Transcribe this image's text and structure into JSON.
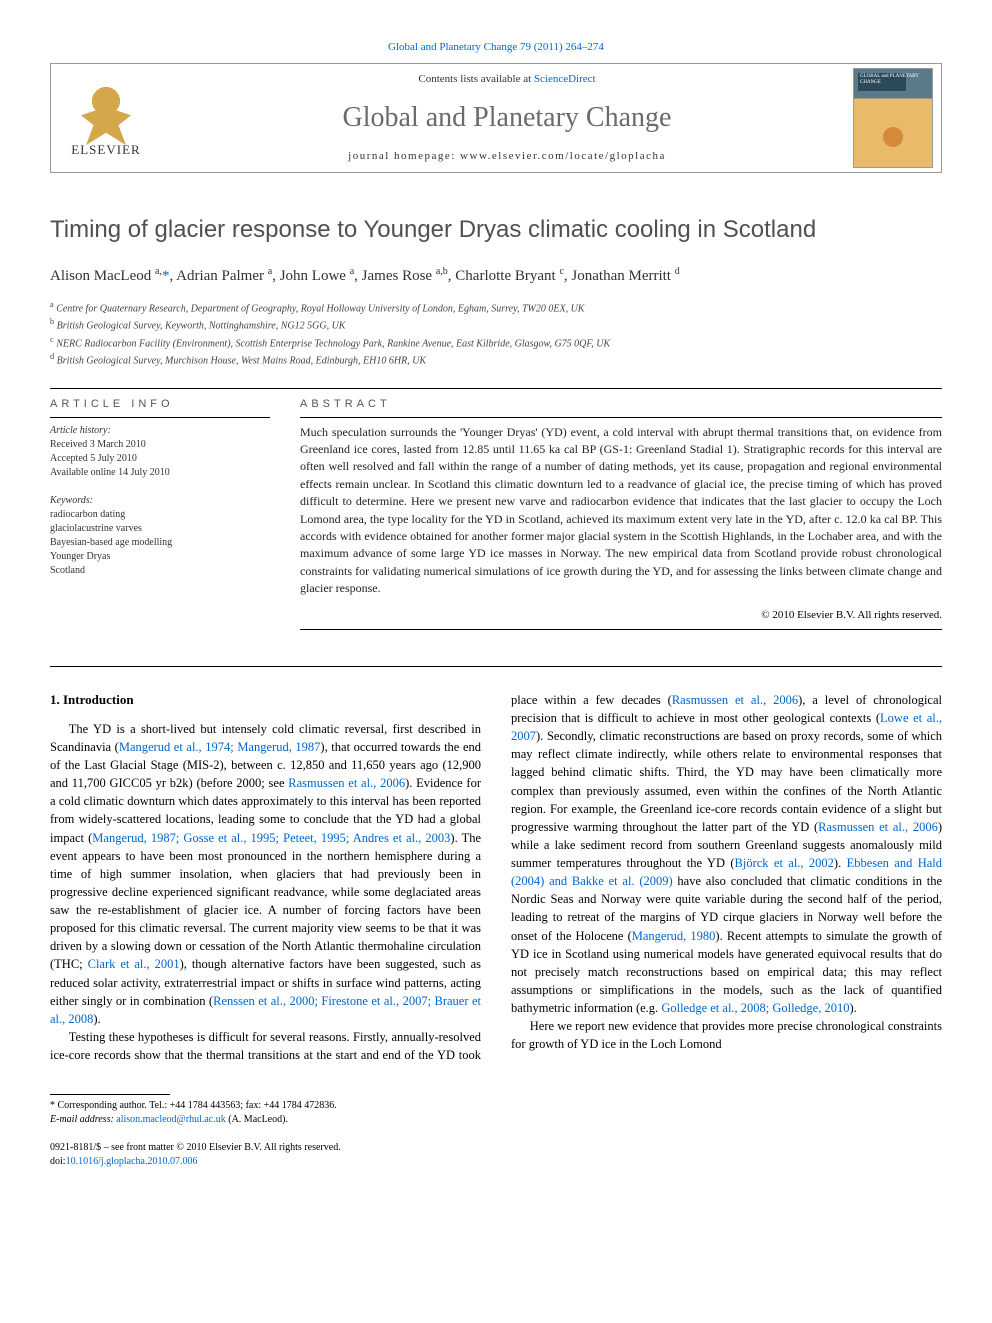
{
  "top_citation": "Global and Planetary Change 79 (2011) 264–274",
  "header": {
    "contents_prefix": "Contents lists available at ",
    "contents_link": "ScienceDirect",
    "journal_name": "Global and Planetary Change",
    "homepage_label": "journal homepage: www.elsevier.com/locate/gloplacha",
    "publisher_name": "ELSEVIER",
    "cover_title": "GLOBAL and PLANETARY CHANGE"
  },
  "article": {
    "title": "Timing of glacier response to Younger Dryas climatic cooling in Scotland",
    "authors_html": "Alison MacLeod <sup>a,</sup><a href=\"#\">*</a>, Adrian Palmer <sup>a</sup>, John Lowe <sup>a</sup>, James Rose <sup>a,b</sup>, Charlotte Bryant <sup>c</sup>, Jonathan Merritt <sup>d</sup>",
    "affiliations": [
      {
        "sup": "a",
        "text": "Centre for Quaternary Research, Department of Geography, Royal Holloway University of London, Egham, Surrey, TW20 0EX, UK"
      },
      {
        "sup": "b",
        "text": "British Geological Survey, Keyworth, Nottinghamshire, NG12 5GG, UK"
      },
      {
        "sup": "c",
        "text": "NERC Radiocarbon Facility (Environment), Scottish Enterprise Technology Park, Rankine Avenue, East Kilbride, Glasgow, G75 0QF, UK"
      },
      {
        "sup": "d",
        "text": "British Geological Survey, Murchison House, West Mains Road, Edinburgh, EH10 6HR, UK"
      }
    ]
  },
  "article_info": {
    "heading": "ARTICLE INFO",
    "history_label": "Article history:",
    "history": [
      "Received 3 March 2010",
      "Accepted 5 July 2010",
      "Available online 14 July 2010"
    ],
    "keywords_label": "Keywords:",
    "keywords": [
      "radiocarbon dating",
      "glaciolacustrine varves",
      "Bayesian-based age modelling",
      "Younger Dryas",
      "Scotland"
    ]
  },
  "abstract": {
    "heading": "ABSTRACT",
    "text": "Much speculation surrounds the 'Younger Dryas' (YD) event, a cold interval with abrupt thermal transitions that, on evidence from Greenland ice cores, lasted from 12.85 until 11.65 ka cal BP (GS-1: Greenland Stadial 1). Stratigraphic records for this interval are often well resolved and fall within the range of a number of dating methods, yet its cause, propagation and regional environmental effects remain unclear. In Scotland this climatic downturn led to a readvance of glacial ice, the precise timing of which has proved difficult to determine. Here we present new varve and radiocarbon evidence that indicates that the last glacier to occupy the Loch Lomond area, the type locality for the YD in Scotland, achieved its maximum extent very late in the YD, after c. 12.0 ka cal BP. This accords with evidence obtained for another former major glacial system in the Scottish Highlands, in the Lochaber area, and with the maximum advance of some large YD ice masses in Norway. The new empirical data from Scotland provide robust chronological constraints for validating numerical simulations of ice growth during the YD, and for assessing the links between climate change and glacier response.",
    "copyright": "© 2010 Elsevier B.V. All rights reserved."
  },
  "body": {
    "section_heading": "1. Introduction",
    "para1_pre": "The YD is a short-lived but intensely cold climatic reversal, first described in Scandinavia (",
    "cite1": "Mangerud et al., 1974; Mangerud, 1987",
    "para1_mid1": "), that occurred towards the end of the Last Glacial Stage (MIS-2), between c. 12,850 and 11,650 years ago (12,900 and 11,700 GICC05 yr b2k) (before 2000; see ",
    "cite2": "Rasmussen et al., 2006",
    "para1_mid2": "). Evidence for a cold climatic downturn which dates approximately to this interval has been reported from widely-scattered locations, leading some to conclude that the YD had a global impact (",
    "cite3": "Mangerud, 1987; Gosse et al., 1995; Peteet, 1995; Andres et al., 2003",
    "para1_mid3": "). The event appears to have been most pronounced in the northern hemisphere during a time of high summer insolation, when glaciers that had previously been in progressive decline experienced significant readvance, while some deglaciated areas saw the re-establishment of glacier ice. A number of forcing factors have been proposed for this climatic reversal. The current majority view seems to be that it was driven by a slowing down or cessation of the North Atlantic thermohaline circulation (THC; ",
    "cite4": "Clark et al., 2001",
    "para1_mid4": "), though alternative factors have been suggested, such as reduced solar activity, extraterrestrial impact or shifts in surface wind patterns, acting either singly or in combination (",
    "cite5": "Renssen et al., 2000; Firestone et al., 2007; Brauer et al., 2008",
    "para1_end": ").",
    "para2_pre": "Testing these hypotheses is difficult for several reasons. Firstly, annually-resolved ice-core records show that the thermal transitions at the start and end of the YD took place within a few decades (",
    "cite6": "Rasmussen et al., 2006",
    "para2_mid1": "), a level of chronological precision that is difficult to achieve in most other geological contexts (",
    "cite7": "Lowe et al., 2007",
    "para2_mid2": "). Secondly, climatic reconstructions are based on proxy records, some of which may reflect climate indirectly, while others relate to environmental responses that lagged behind climatic shifts. Third, the YD may have been climatically more complex than previously assumed, even within the confines of the North Atlantic region. For example, the Greenland ice-core records contain evidence of a slight but progressive warming throughout the latter part of the YD (",
    "cite8": "Rasmussen et al., 2006",
    "para2_mid3": ") while a lake sediment record from southern Greenland suggests anomalously mild summer temperatures throughout the YD (",
    "cite9": "Björck et al., 2002",
    "para2_mid4": "). ",
    "cite10": "Ebbesen and Hald (2004) and Bakke et al. (2009)",
    "para2_mid5": " have also concluded that climatic conditions in the Nordic Seas and Norway were quite variable during the second half of the period, leading to retreat of the margins of YD cirque glaciers in Norway well before the onset of the Holocene (",
    "cite11": "Mangerud, 1980",
    "para2_mid6": "). Recent attempts to simulate the growth of YD ice in Scotland using numerical models have generated equivocal results that do not precisely match reconstructions based on empirical data; this may reflect assumptions or simplifications in the models, such as the lack of quantified bathymetric information (e.g. ",
    "cite12": "Golledge et al., 2008; Golledge, 2010",
    "para2_end": ").",
    "para3": "Here we report new evidence that provides more precise chronological constraints for growth of YD ice in the Loch Lomond"
  },
  "footer": {
    "corresponding": "* Corresponding author. Tel.: +44 1784 443563; fax: +44 1784 472836.",
    "email_label": "E-mail address: ",
    "email": "alison.macleod@rhul.ac.uk",
    "email_suffix": " (A. MacLeod).",
    "issn_line": "0921-8181/$ – see front matter © 2010 Elsevier B.V. All rights reserved.",
    "doi_label": "doi:",
    "doi": "10.1016/j.gloplacha.2010.07.006"
  },
  "colors": {
    "link": "#0066cc",
    "title_grey": "#505050",
    "journal_grey": "#6b6b6b",
    "elsevier_orange": "#d4a84a"
  }
}
